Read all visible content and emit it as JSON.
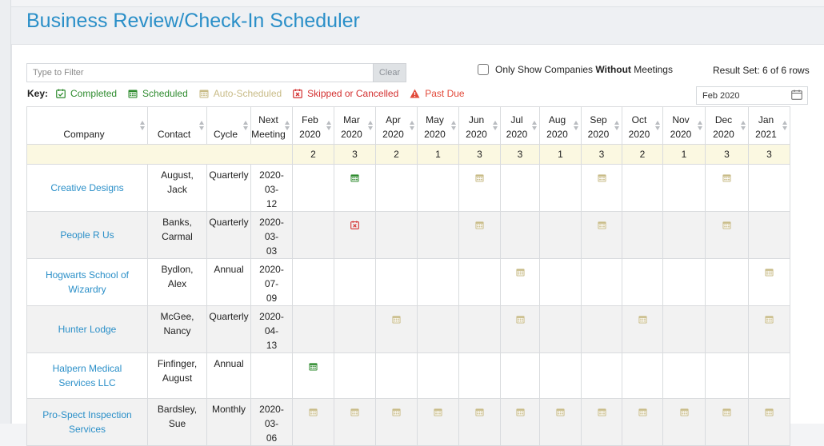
{
  "page": {
    "title": "Business Review/Check-In Scheduler"
  },
  "filter": {
    "placeholder": "Type to Filter",
    "value": "",
    "clear_label": "Clear"
  },
  "only_show": {
    "prefix": "Only Show Companies ",
    "bold": "Without",
    "suffix": " Meetings",
    "checked": false
  },
  "result_set": "Result Set: 6 of 6 rows",
  "key": {
    "label": "Key:",
    "items": [
      {
        "label": "Completed",
        "icon": "calendar-check-icon",
        "color": "#2e8b2e"
      },
      {
        "label": "Scheduled",
        "icon": "calendar-icon",
        "color": "#2e8b2e"
      },
      {
        "label": "Auto-Scheduled",
        "icon": "calendar-icon",
        "color": "#c8bb86"
      },
      {
        "label": "Skipped or Cancelled",
        "icon": "calendar-x-icon",
        "color": "#d32f2f"
      },
      {
        "label": "Past Due",
        "icon": "warning-icon",
        "color": "#e24a3a"
      }
    ]
  },
  "month_select": {
    "value": "Feb 2020",
    "icon": "calendar-icon"
  },
  "table": {
    "headers": {
      "company": "Company",
      "contact": "Contact",
      "cycle": "Cycle",
      "next_line1": "Next",
      "next_line2": "Meeting"
    },
    "months": [
      {
        "m": "Feb",
        "y": "2020",
        "count": "2"
      },
      {
        "m": "Mar",
        "y": "2020",
        "count": "3"
      },
      {
        "m": "Apr",
        "y": "2020",
        "count": "2"
      },
      {
        "m": "May",
        "y": "2020",
        "count": "1"
      },
      {
        "m": "Jun",
        "y": "2020",
        "count": "3"
      },
      {
        "m": "Jul",
        "y": "2020",
        "count": "3"
      },
      {
        "m": "Aug",
        "y": "2020",
        "count": "1"
      },
      {
        "m": "Sep",
        "y": "2020",
        "count": "3"
      },
      {
        "m": "Oct",
        "y": "2020",
        "count": "2"
      },
      {
        "m": "Nov",
        "y": "2020",
        "count": "1"
      },
      {
        "m": "Dec",
        "y": "2020",
        "count": "3"
      },
      {
        "m": "Jan",
        "y": "2021",
        "count": "3"
      }
    ],
    "rows": [
      {
        "company_lines": [
          "Creative Designs"
        ],
        "contact_lines": [
          "August, Jack"
        ],
        "cycle": "Quarterly",
        "next_lines": [
          "2020-03-",
          "12"
        ],
        "cells": [
          "",
          "scheduled",
          "",
          "",
          "auto",
          "",
          "",
          "auto",
          "",
          "",
          "auto",
          ""
        ]
      },
      {
        "company_lines": [
          "People R Us"
        ],
        "contact_lines": [
          "Banks,",
          "Carmal"
        ],
        "cycle": "Quarterly",
        "next_lines": [
          "2020-03-",
          "03"
        ],
        "cells": [
          "",
          "skipped",
          "",
          "",
          "auto",
          "",
          "",
          "auto",
          "",
          "",
          "auto",
          ""
        ]
      },
      {
        "company_lines": [
          "Hogwarts School of",
          "Wizardry"
        ],
        "contact_lines": [
          "Bydlon, Alex"
        ],
        "cycle": "Annual",
        "next_lines": [
          "2020-07-",
          "09"
        ],
        "cells": [
          "",
          "",
          "",
          "",
          "",
          "auto",
          "",
          "",
          "",
          "",
          "",
          "auto"
        ]
      },
      {
        "company_lines": [
          "Hunter Lodge"
        ],
        "contact_lines": [
          "McGee,",
          "Nancy"
        ],
        "cycle": "Quarterly",
        "next_lines": [
          "2020-04-",
          "13"
        ],
        "cells": [
          "",
          "",
          "auto",
          "",
          "",
          "auto",
          "",
          "",
          "auto",
          "",
          "",
          "auto"
        ]
      },
      {
        "company_lines": [
          "Halpern Medical",
          "Services LLC"
        ],
        "contact_lines": [
          "Finfinger,",
          "August"
        ],
        "cycle": "Annual",
        "next_lines": [],
        "cells": [
          "scheduled",
          "",
          "",
          "",
          "",
          "",
          "",
          "",
          "",
          "",
          "",
          ""
        ]
      },
      {
        "company_lines": [
          "Pro-Spect Inspection",
          "Services"
        ],
        "contact_lines": [
          "Bardsley,",
          "Sue"
        ],
        "cycle": "Monthly",
        "next_lines": [
          "2020-03-",
          "06"
        ],
        "cells": [
          "auto",
          "auto",
          "auto",
          "auto",
          "auto",
          "auto",
          "auto",
          "auto",
          "auto",
          "auto",
          "auto",
          "auto"
        ]
      }
    ]
  }
}
